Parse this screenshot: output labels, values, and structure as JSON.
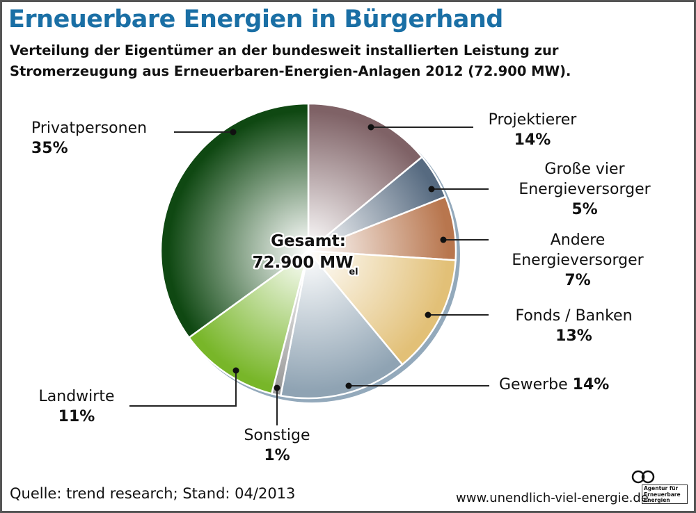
{
  "title": "Erneuerbare Energien in Bürgerhand",
  "subtitle_line1": "Verteilung der Eigentümer an der bundesweit installierten Leistung zur",
  "subtitle_line2": "Stromerzeugung aus Erneuerbaren-Energien-Anlagen 2012 (72.900 MW).",
  "center_label": {
    "line1": "Gesamt:",
    "value": "72.900 MW",
    "subscript": "el"
  },
  "source": "Quelle: trend research; Stand: 04/2013",
  "url": "www.unendlich-viel-energie.de",
  "logo_text": "Agentur für Erneuerbare Energien",
  "chart_data": {
    "type": "pie",
    "title": "Erneuerbare Energien in Bürgerhand",
    "unit": "%",
    "start": "top, clockwise",
    "slices": [
      {
        "label": "Projektierer",
        "value": 14,
        "value_label": "14%",
        "color": "#7f6266"
      },
      {
        "label": "Große vier Energieversorger",
        "label_lines": [
          "Große vier",
          "Energieversorger"
        ],
        "value": 5,
        "value_label": "5%",
        "color": "#566a80"
      },
      {
        "label": "Andere Energieversorger",
        "label_lines": [
          "Andere",
          "Energieversorger"
        ],
        "value": 7,
        "value_label": "7%",
        "color": "#b8764e"
      },
      {
        "label": "Fonds / Banken",
        "value": 13,
        "value_label": "13%",
        "color": "#e2c077"
      },
      {
        "label": "Gewerbe",
        "value": 14,
        "value_label": "14%",
        "color": "#8fa3b3"
      },
      {
        "label": "Sonstige",
        "value": 1,
        "value_label": "1%",
        "color": "#9a9a9a"
      },
      {
        "label": "Landwirte",
        "value": 11,
        "value_label": "11%",
        "color": "#78b629"
      },
      {
        "label": "Privatpersonen",
        "value": 35,
        "value_label": "35%",
        "color": "#0f4812"
      }
    ]
  }
}
